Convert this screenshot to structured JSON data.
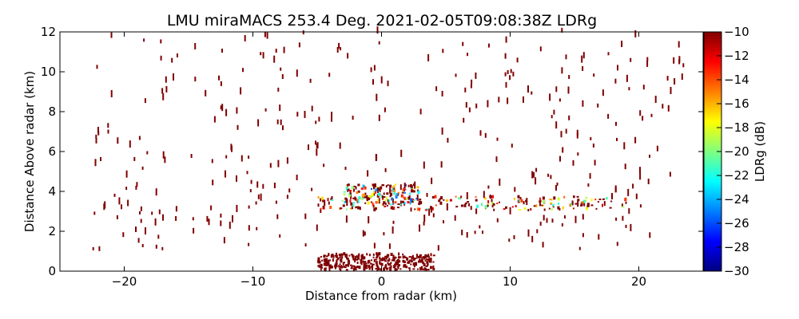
{
  "chart_data": {
    "type": "heatmap",
    "title": "LMU miraMACS 253.4 Deg. 2021-02-05T09:08:38Z  LDRg",
    "xlabel": "Distance from radar (km)",
    "ylabel": "Distance Above radar  (km)",
    "xlim": [
      -25,
      25
    ],
    "ylim": [
      0,
      12
    ],
    "x_ticks": [
      -20,
      -10,
      0,
      10,
      20
    ],
    "x_tick_labels": [
      "−20",
      "−10",
      "0",
      "10",
      "20"
    ],
    "y_ticks": [
      0,
      2,
      4,
      6,
      8,
      10,
      12
    ],
    "y_tick_labels": [
      "0",
      "2",
      "4",
      "6",
      "8",
      "10",
      "12"
    ],
    "grid": false,
    "colorbar": {
      "label": "LDRg (dB)",
      "range": [
        -30,
        -10
      ],
      "ticks": [
        -10,
        -12,
        -14,
        -16,
        -18,
        -20,
        -22,
        -24,
        -26,
        -28,
        -30
      ],
      "tick_labels": [
        "−10",
        "−12",
        "−14",
        "−16",
        "−18",
        "−20",
        "−22",
        "−24",
        "−26",
        "−28",
        "−30"
      ],
      "colormap": "jet",
      "colors": [
        "#00007f",
        "#0000ff",
        "#007fff",
        "#00ffff",
        "#7fff7f",
        "#ffff00",
        "#ff7f00",
        "#ff0000",
        "#7f0000"
      ]
    },
    "features": [
      {
        "name": "noise speckle (upper)",
        "x_range": [
          -22.5,
          23.5
        ],
        "y_range": [
          4.5,
          12
        ],
        "ldr_dB": -10,
        "count": 230
      },
      {
        "name": "noise speckle (mid)",
        "x_range": [
          -22.5,
          22
        ],
        "y_range": [
          1,
          4.5
        ],
        "ldr_dB": -10,
        "count": 160
      },
      {
        "name": "melting layer band",
        "x_range": [
          -5,
          19
        ],
        "y_range": [
          3.0,
          3.7
        ],
        "ldr_range_dB": [
          -22,
          -10
        ],
        "count": 190
      },
      {
        "name": "overhead echo",
        "x_range": [
          -3,
          3
        ],
        "y_range": [
          3.3,
          4.3
        ],
        "ldr_range_dB": [
          -26,
          -12
        ],
        "count": 140
      },
      {
        "name": "near-surface clutter",
        "x_range": [
          -5,
          4
        ],
        "y_range": [
          0,
          0.8
        ],
        "ldr_dB": -10,
        "count": 330
      }
    ]
  }
}
